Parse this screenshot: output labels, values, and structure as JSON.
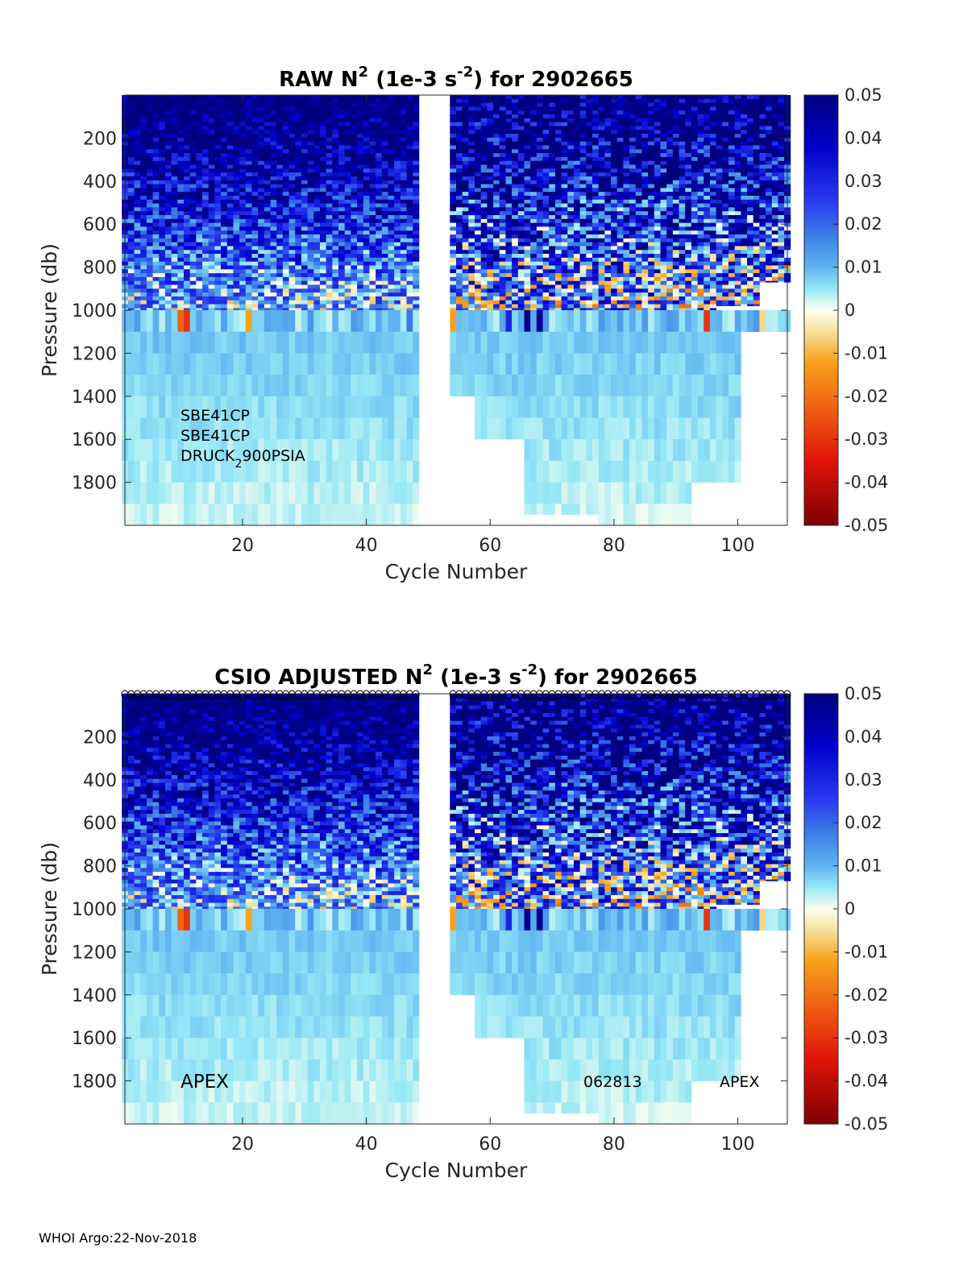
{
  "footer": "WHOI Argo:22-Nov-2018",
  "chart_data": [
    {
      "type": "heatmap",
      "title": {
        "pre": "RAW N",
        "sup1": "2",
        "mid": " (1e-3 s",
        "sup2": "-2",
        "post": ") for 2902665"
      },
      "xlabel": "Cycle Number",
      "ylabel": "Pressure (db)",
      "xlim": [
        1,
        108
      ],
      "ylim": [
        2000,
        0
      ],
      "xticks": [
        20,
        40,
        60,
        80,
        100
      ],
      "yticks": [
        200,
        400,
        600,
        800,
        1000,
        1200,
        1400,
        1600,
        1800
      ],
      "colorbar": {
        "min": -0.05,
        "max": 0.05,
        "ticks": [
          "0.05",
          "0.04",
          "0.03",
          "0.02",
          "0.01",
          "0",
          "-0.01",
          "-0.02",
          "-0.03",
          "-0.04",
          "-0.05"
        ]
      },
      "annotations": {
        "sensor1": "SBE41CP",
        "sensor2": "SBE41CP",
        "pressure_pre": "DRUCK",
        "pressure_sub": "2",
        "pressure_post": "900PSIA"
      }
    },
    {
      "type": "heatmap",
      "title": {
        "pre": "CSIO  ADJUSTED N",
        "sup1": "2",
        "mid": " (1e-3 s",
        "sup2": "-2",
        "post": ") for 2902665"
      },
      "xlabel": "Cycle Number",
      "ylabel": "Pressure (db)",
      "xlim": [
        1,
        108
      ],
      "ylim": [
        2000,
        0
      ],
      "xticks": [
        20,
        40,
        60,
        80,
        100
      ],
      "yticks": [
        200,
        400,
        600,
        800,
        1000,
        1200,
        1400,
        1600,
        1800
      ],
      "colorbar": {
        "min": -0.05,
        "max": 0.05,
        "ticks": [
          "0.05",
          "0.04",
          "0.03",
          "0.02",
          "0.01",
          "0",
          "-0.01",
          "-0.02",
          "-0.03",
          "-0.04",
          "-0.05"
        ]
      },
      "annotations": {
        "left": "APEX",
        "mid": "062813",
        "right": "APEX"
      }
    }
  ],
  "gaps": {
    "missing_cycles": [
      49,
      50,
      51,
      52,
      53
    ],
    "white_line_cycle": 51
  }
}
